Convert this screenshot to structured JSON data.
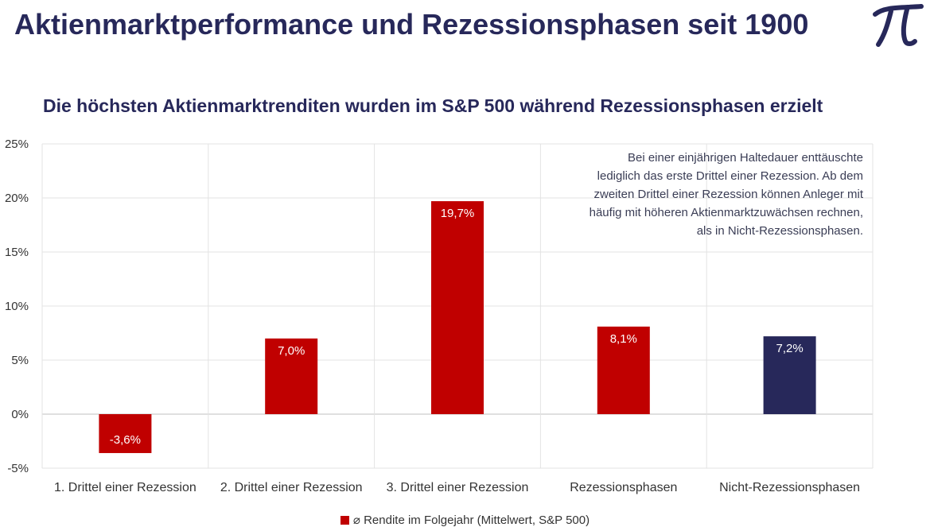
{
  "title": "Aktienmarktperformance und Rezessionsphasen seit 1900",
  "logo": {
    "icon": "pi-logo-icon",
    "color": "#27285a"
  },
  "chart_data": {
    "type": "bar",
    "title": "Die höchsten Aktienmarktrenditen wurden im S&P 500 während Rezessionsphasen erzielt",
    "categories": [
      "1. Drittel einer Rezession",
      "2. Drittel einer Rezession",
      "3. Drittel einer Rezession",
      "Rezessionsphasen",
      "Nicht-Rezessionsphasen"
    ],
    "series": [
      {
        "name": "⌀ Rendite im Folgejahr (Mittelwert, S&P 500)",
        "values": [
          -3.6,
          7.0,
          19.7,
          8.1,
          7.2
        ],
        "labels": [
          "-3,6%",
          "7,0%",
          "19,7%",
          "8,1%",
          "7,2%"
        ],
        "colors": [
          "#c00000",
          "#c00000",
          "#c00000",
          "#c00000",
          "#27285a"
        ]
      }
    ],
    "ylim": [
      -5,
      25
    ],
    "yticks": [
      25,
      20,
      15,
      10,
      5,
      0,
      -5
    ],
    "ytick_labels": [
      "25%",
      "20%",
      "15%",
      "10%",
      "5%",
      "0%",
      "-5%"
    ],
    "xlabel": "",
    "ylabel": "",
    "grid": true,
    "legend_position": "bottom",
    "annotation": [
      "Bei einer einjährigen Haltedauer enttäuschte",
      "lediglich das erste Drittel einer Rezession. Ab dem",
      "zweiten Drittel einer Rezession können Anleger mit",
      "häufig mit höheren Aktienmarktzuwächsen rechnen,",
      "als in Nicht-Rezessionsphasen."
    ]
  }
}
